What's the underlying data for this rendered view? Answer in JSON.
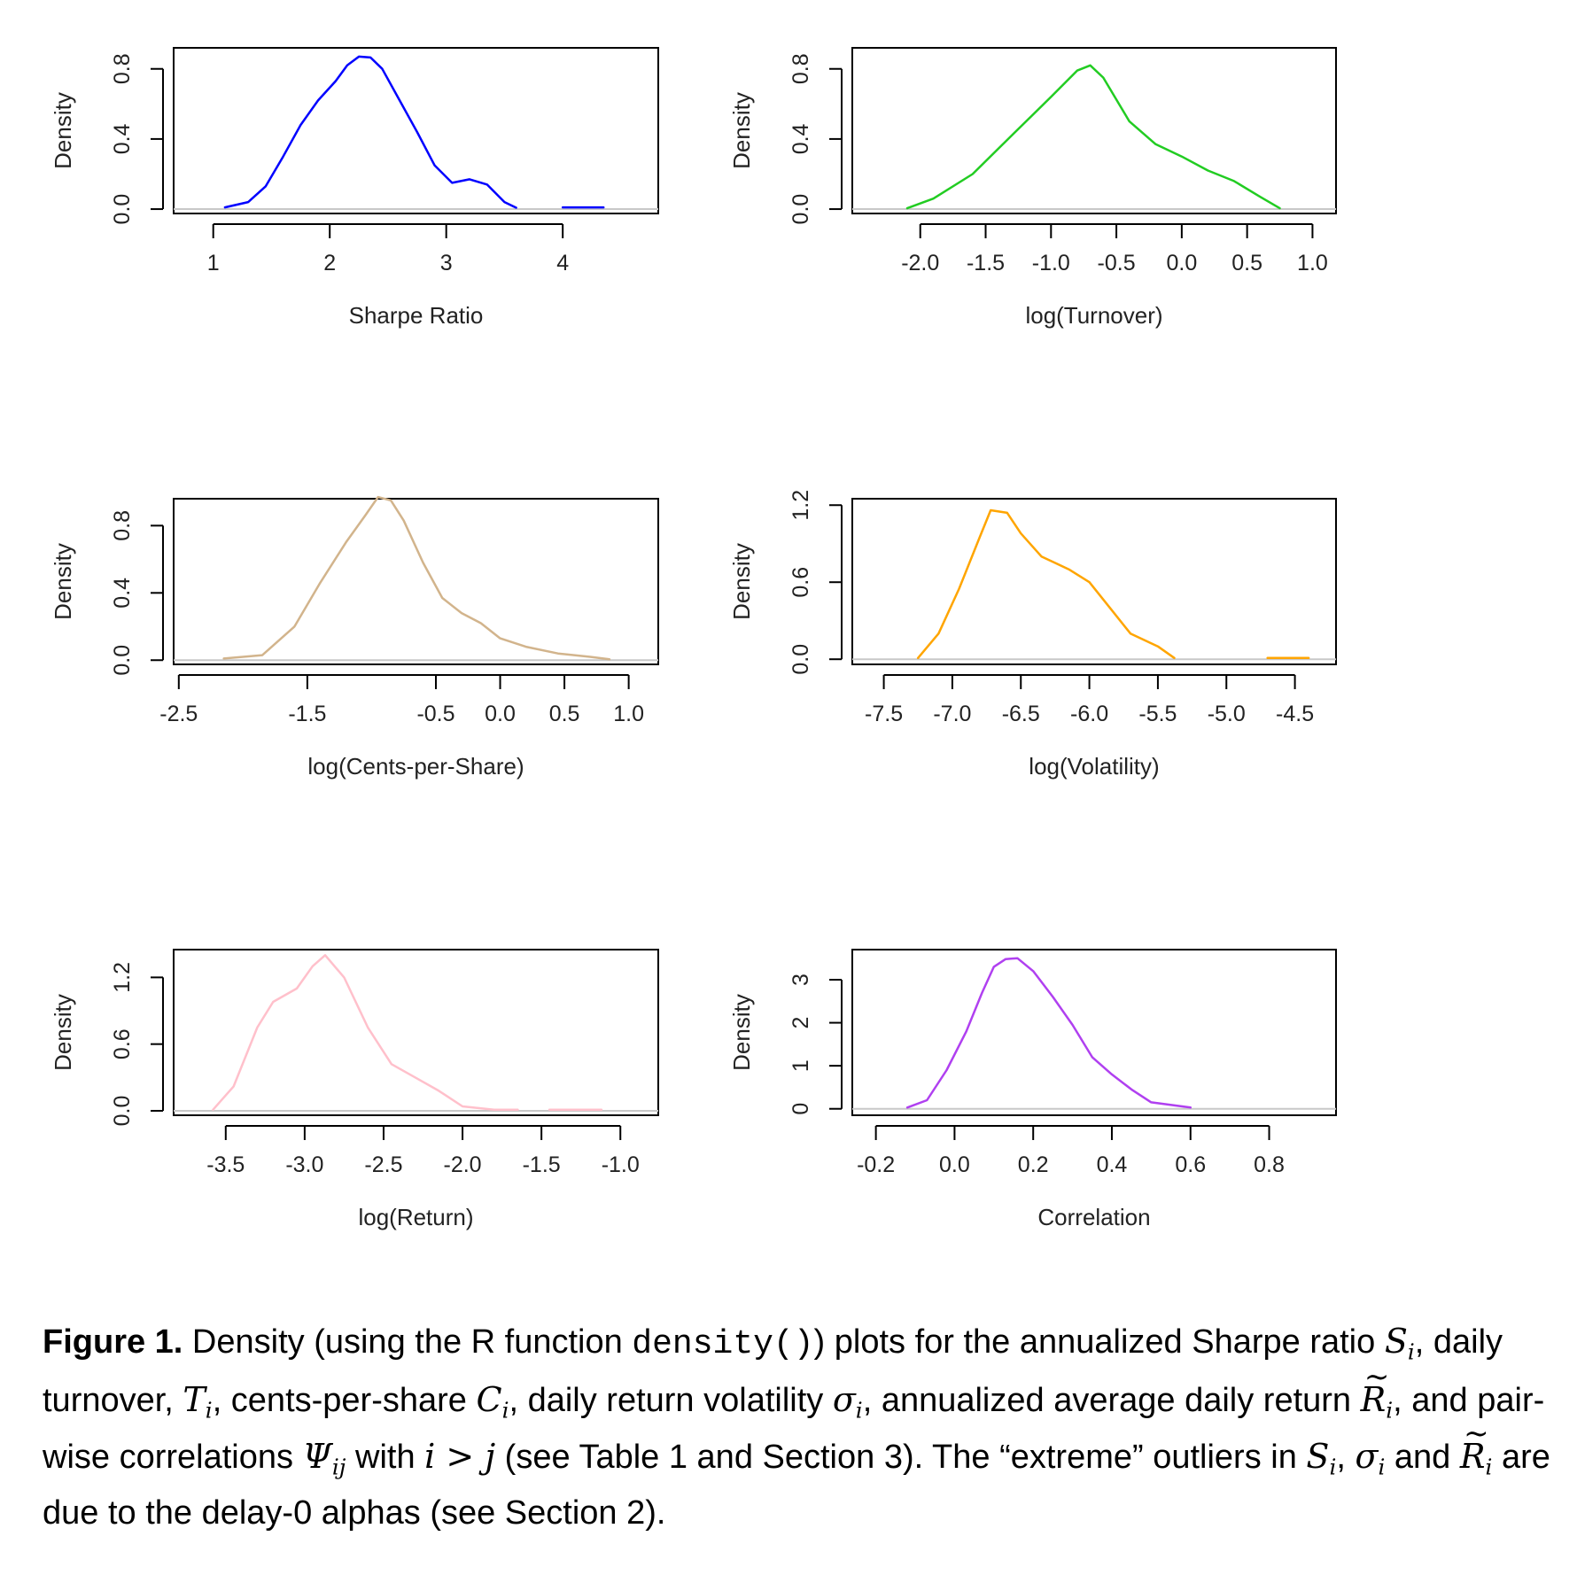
{
  "chart_data": [
    {
      "type": "line",
      "color": "#0000ff",
      "xlabel": "Sharpe Ratio",
      "ylabel": "Density",
      "xlim": [
        0.66,
        4.82
      ],
      "ylim": [
        -0.025,
        0.92
      ],
      "xticks": [
        "1",
        "2",
        "3",
        "4"
      ],
      "yticks": [
        "0.0",
        "0.4",
        "0.8"
      ],
      "segments": [
        [
          [
            1.1,
            0.01
          ],
          [
            1.3,
            0.04
          ],
          [
            1.45,
            0.13
          ],
          [
            1.6,
            0.3
          ],
          [
            1.75,
            0.48
          ],
          [
            1.9,
            0.62
          ],
          [
            2.05,
            0.73
          ],
          [
            2.15,
            0.82
          ],
          [
            2.25,
            0.87
          ],
          [
            2.35,
            0.865
          ],
          [
            2.45,
            0.8
          ],
          [
            2.6,
            0.62
          ],
          [
            2.75,
            0.44
          ],
          [
            2.9,
            0.25
          ],
          [
            3.05,
            0.15
          ],
          [
            3.2,
            0.17
          ],
          [
            3.35,
            0.14
          ],
          [
            3.5,
            0.04
          ],
          [
            3.6,
            0.008
          ]
        ],
        [
          [
            4.0,
            0.01
          ],
          [
            4.35,
            0.01
          ]
        ]
      ]
    },
    {
      "type": "line",
      "color": "#22cc22",
      "xlabel": "log(Turnover)",
      "ylabel": "Density",
      "xlim": [
        -2.52,
        1.18
      ],
      "ylim": [
        -0.025,
        0.92
      ],
      "xticks": [
        "-2.0",
        "-1.5",
        "-1.0",
        "-0.5",
        "0.0",
        "0.5",
        "1.0"
      ],
      "yticks": [
        "0.0",
        "0.4",
        "0.8"
      ],
      "segments": [
        [
          [
            -2.1,
            0.005
          ],
          [
            -1.9,
            0.06
          ],
          [
            -1.6,
            0.2
          ],
          [
            -1.3,
            0.42
          ],
          [
            -1.0,
            0.64
          ],
          [
            -0.8,
            0.79
          ],
          [
            -0.7,
            0.82
          ],
          [
            -0.6,
            0.75
          ],
          [
            -0.4,
            0.5
          ],
          [
            -0.2,
            0.37
          ],
          [
            0.0,
            0.3
          ],
          [
            0.2,
            0.22
          ],
          [
            0.4,
            0.16
          ],
          [
            0.6,
            0.07
          ],
          [
            0.75,
            0.005
          ]
        ]
      ]
    },
    {
      "type": "line",
      "color": "#d2b48c",
      "xlabel": "log(Cents-per-Share)",
      "ylabel": "Density",
      "xlim": [
        -2.54,
        1.23
      ],
      "ylim": [
        -0.025,
        0.96
      ],
      "xticks": [
        "-2.5",
        "-1.5",
        "-0.5",
        "0.0",
        "0.5",
        "1.0"
      ],
      "yticks": [
        "0.0",
        "0.4",
        "0.8"
      ],
      "segments": [
        [
          [
            -2.15,
            0.01
          ],
          [
            -1.85,
            0.03
          ],
          [
            -1.6,
            0.2
          ],
          [
            -1.4,
            0.46
          ],
          [
            -1.2,
            0.7
          ],
          [
            -1.05,
            0.86
          ],
          [
            -0.95,
            0.97
          ],
          [
            -0.85,
            0.95
          ],
          [
            -0.75,
            0.83
          ],
          [
            -0.6,
            0.58
          ],
          [
            -0.45,
            0.37
          ],
          [
            -0.3,
            0.28
          ],
          [
            -0.15,
            0.22
          ],
          [
            0.0,
            0.13
          ],
          [
            0.2,
            0.08
          ],
          [
            0.45,
            0.04
          ],
          [
            0.7,
            0.02
          ],
          [
            0.85,
            0.005
          ]
        ]
      ]
    },
    {
      "type": "line",
      "color": "#ffa500",
      "xlabel": "log(Volatility)",
      "ylabel": "Density",
      "xlim": [
        -7.73,
        -4.2
      ],
      "ylim": [
        -0.04,
        1.25
      ],
      "xticks": [
        "-7.5",
        "-7.0",
        "-6.5",
        "-6.0",
        "-5.5",
        "-5.0",
        "-4.5"
      ],
      "yticks": [
        "0.0",
        "0.6",
        "1.2"
      ],
      "segments": [
        [
          [
            -7.25,
            0.01
          ],
          [
            -7.1,
            0.2
          ],
          [
            -6.95,
            0.55
          ],
          [
            -6.8,
            0.95
          ],
          [
            -6.72,
            1.16
          ],
          [
            -6.6,
            1.14
          ],
          [
            -6.5,
            0.98
          ],
          [
            -6.35,
            0.8
          ],
          [
            -6.15,
            0.7
          ],
          [
            -6.0,
            0.6
          ],
          [
            -5.85,
            0.4
          ],
          [
            -5.7,
            0.2
          ],
          [
            -5.5,
            0.1
          ],
          [
            -5.38,
            0.01
          ]
        ],
        [
          [
            -4.7,
            0.01
          ],
          [
            -4.4,
            0.01
          ]
        ]
      ]
    },
    {
      "type": "line",
      "color": "#ffc0cb",
      "xlabel": "log(Return)",
      "ylabel": "Density",
      "xlim": [
        -3.83,
        -0.76
      ],
      "ylim": [
        -0.04,
        1.45
      ],
      "xticks": [
        "-3.5",
        "-3.0",
        "-2.5",
        "-2.0",
        "-1.5",
        "-1.0"
      ],
      "yticks": [
        "0.0",
        "0.6",
        "1.2"
      ],
      "segments": [
        [
          [
            -3.58,
            0.01
          ],
          [
            -3.45,
            0.22
          ],
          [
            -3.3,
            0.75
          ],
          [
            -3.2,
            0.98
          ],
          [
            -3.05,
            1.1
          ],
          [
            -2.95,
            1.3
          ],
          [
            -2.87,
            1.4
          ],
          [
            -2.75,
            1.2
          ],
          [
            -2.6,
            0.75
          ],
          [
            -2.45,
            0.42
          ],
          [
            -2.3,
            0.3
          ],
          [
            -2.15,
            0.18
          ],
          [
            -2.0,
            0.04
          ],
          [
            -1.8,
            0.01
          ],
          [
            -1.65,
            0.01
          ]
        ],
        [
          [
            -1.45,
            0.01
          ],
          [
            -1.12,
            0.01
          ]
        ]
      ]
    },
    {
      "type": "line",
      "color": "#b040f0",
      "xlabel": "Correlation",
      "ylabel": "Density",
      "xlim": [
        -0.26,
        0.97
      ],
      "ylim": [
        -0.15,
        3.7
      ],
      "xticks": [
        "-0.2",
        "0.0",
        "0.2",
        "0.4",
        "0.6",
        "0.8"
      ],
      "yticks": [
        "0",
        "1",
        "2",
        "3"
      ],
      "segments": [
        [
          [
            -0.12,
            0.03
          ],
          [
            -0.07,
            0.2
          ],
          [
            -0.02,
            0.9
          ],
          [
            0.03,
            1.8
          ],
          [
            0.07,
            2.7
          ],
          [
            0.1,
            3.3
          ],
          [
            0.13,
            3.48
          ],
          [
            0.16,
            3.5
          ],
          [
            0.2,
            3.2
          ],
          [
            0.25,
            2.6
          ],
          [
            0.3,
            1.95
          ],
          [
            0.35,
            1.2
          ],
          [
            0.4,
            0.8
          ],
          [
            0.45,
            0.45
          ],
          [
            0.5,
            0.15
          ],
          [
            0.6,
            0.03
          ]
        ]
      ]
    }
  ],
  "caption": {
    "label": "Figure 1.",
    "t1": " Density (using the R function ",
    "code": "density()",
    "t2": ") plots for the annualized Sharpe ratio ",
    "t3": ", daily turnover, ",
    "t4": ", cents-per-share ",
    "t5": ", daily return volatility ",
    "t6": ", annualized average daily return ",
    "t7": ", and pair-wise correlations ",
    "t8": " with ",
    "t9": " (see Table 1 and Section 3).  The “extreme” outliers in ",
    "t10": ", ",
    "t11": " and ",
    "t12": " are due to the delay-0 alphas (see Section 2).",
    "sym": {
      "S": "S",
      "T": "T",
      "C": "C",
      "sigma": "σ",
      "R": "R",
      "Psi": "Ψ",
      "i": "i",
      "ij": "ij",
      "j": "j",
      "gt": " > "
    }
  }
}
